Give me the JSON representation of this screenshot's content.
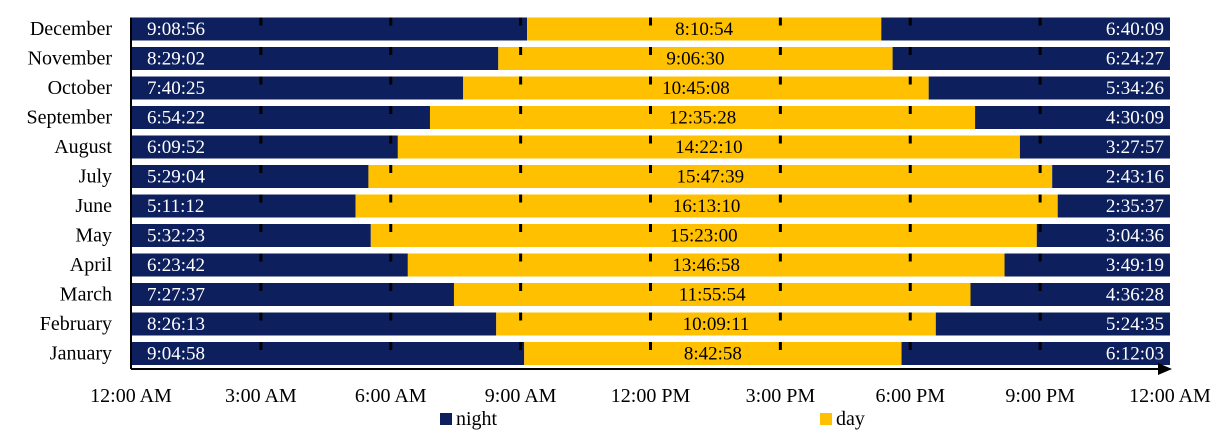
{
  "chart_data": {
    "type": "bar",
    "stacked": true,
    "orientation": "horizontal",
    "categories": [
      "January",
      "February",
      "March",
      "April",
      "May",
      "June",
      "July",
      "August",
      "September",
      "October",
      "November",
      "December"
    ],
    "series": [
      {
        "name": "night",
        "color": "#0d1f5c",
        "labels": [
          "9:04:58",
          "8:26:13",
          "7:27:37",
          "6:23:42",
          "5:32:23",
          "5:11:12",
          "5:29:04",
          "6:09:52",
          "6:54:22",
          "7:40:25",
          "8:29:02",
          "9:08:56"
        ],
        "values": [
          9.0828,
          8.4369,
          7.4603,
          6.395,
          5.5397,
          5.1867,
          5.4844,
          6.1644,
          6.9061,
          7.6736,
          8.4839,
          9.1489
        ]
      },
      {
        "name": "day",
        "color": "#ffc000",
        "labels": [
          "8:42:58",
          "10:09:11",
          "11:55:54",
          "13:46:58",
          "15:23:00",
          "16:13:10",
          "15:47:39",
          "14:22:10",
          "12:35:28",
          "10:45:08",
          "9:06:30",
          "8:10:54"
        ],
        "values": [
          8.7161,
          10.1531,
          11.9317,
          13.7828,
          15.3833,
          16.2194,
          15.7942,
          14.3694,
          12.5911,
          10.7522,
          9.1083,
          8.1817
        ]
      },
      {
        "name": "night",
        "color": "#0d1f5c",
        "labels": [
          "6:12:03",
          "5:24:35",
          "4:36:28",
          "3:49:19",
          "3:04:36",
          "2:35:37",
          "2:43:16",
          "3:27:57",
          "4:30:09",
          "5:34:26",
          "6:24:27",
          "6:40:09"
        ],
        "values": [
          6.2008,
          5.4097,
          4.6078,
          3.8219,
          3.0767,
          2.5936,
          2.7211,
          3.4658,
          4.5025,
          5.5739,
          6.4075,
          6.6692
        ]
      }
    ],
    "x_ticks": [
      "12:00 AM",
      "3:00 AM",
      "6:00 AM",
      "9:00 AM",
      "12:00 PM",
      "3:00 PM",
      "6:00 PM",
      "9:00 PM",
      "12:00 AM"
    ],
    "xlim": [
      0,
      24
    ],
    "legend": [
      {
        "name": "night",
        "color": "#0d1f5c"
      },
      {
        "name": "day",
        "color": "#ffc000"
      }
    ],
    "legend_position": "bottom"
  }
}
